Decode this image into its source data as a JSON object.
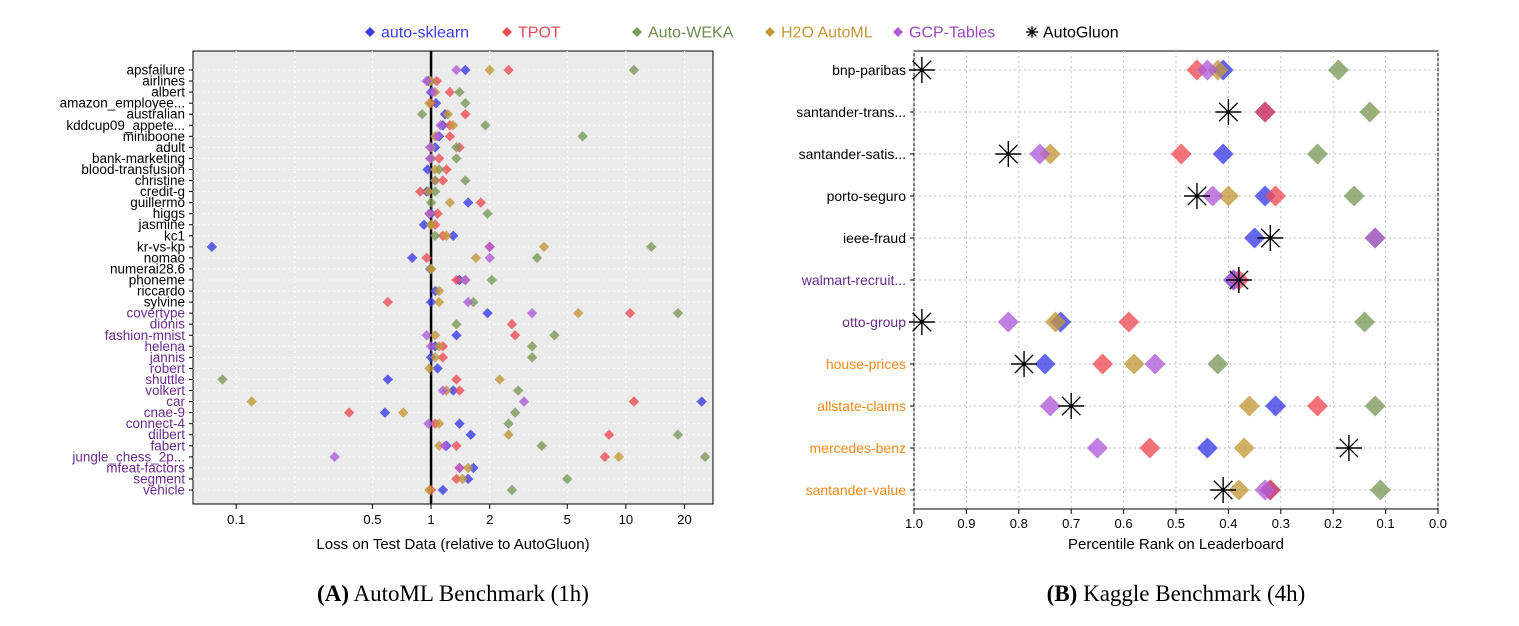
{
  "legend": [
    {
      "name": "auto-sklearn",
      "color": "#3b3be8",
      "marker": "diamond",
      "label_color": "#3b3be8"
    },
    {
      "name": "TPOT",
      "color": "#ee4d55",
      "marker": "diamond",
      "label_color": "#ee4d55"
    },
    {
      "name": "Auto-WEKA",
      "color": "#7a9a58",
      "marker": "diamond",
      "label_color": "#6e8a4e"
    },
    {
      "name": "H2O AutoML",
      "color": "#c4973a",
      "marker": "diamond",
      "label_color": "#c4973a"
    },
    {
      "name": "GCP-Tables",
      "color": "#b05cd8",
      "marker": "diamond",
      "label_color": "#9a48c4"
    },
    {
      "name": "AutoGluon",
      "color": "#000000",
      "marker": "asterisk",
      "label_color": "#000000"
    }
  ],
  "colors": {
    "black_label": "#000000",
    "purple_label": "#6a2b8a",
    "orange_label": "#f0881a"
  },
  "chart_data": [
    {
      "type": "scatter",
      "panel": "A",
      "caption_letter": "(A)",
      "caption_text": " AutoML Benchmark (1h)",
      "xlabel": "Loss on Test Data (relative to AutoGluon)",
      "ylabel": "",
      "x_scale": "log",
      "xlim": [
        0.06,
        28
      ],
      "xticks": [
        0.1,
        0.5,
        1,
        2,
        5,
        10,
        20
      ],
      "xtick_labels": [
        "0.1",
        "0.5",
        "1",
        "2",
        "5",
        "10",
        "20"
      ],
      "reference_line": 1,
      "grid": true,
      "legend_position": "top",
      "series_order": [
        "auto-sklearn",
        "TPOT",
        "Auto-WEKA",
        "H2O AutoML",
        "GCP-Tables"
      ],
      "datasets": [
        {
          "name": "apsfailure",
          "color_group": "black",
          "values": [
            1.5,
            2.5,
            11,
            2.0,
            1.35
          ]
        },
        {
          "name": "airlines",
          "color_group": "black",
          "values": [
            0.97,
            1.07,
            1.0,
            0.99,
            0.95
          ]
        },
        {
          "name": "albert",
          "color_group": "black",
          "values": [
            1.0,
            1.25,
            1.4,
            1.05,
            1.02
          ]
        },
        {
          "name": "amazon_employee...",
          "color_group": "black",
          "values": [
            1.06,
            1.0,
            1.5,
            0.98,
            null
          ]
        },
        {
          "name": "australian",
          "color_group": "black",
          "values": [
            1.18,
            1.5,
            0.9,
            1.22,
            null
          ]
        },
        {
          "name": "kddcup09_appete...",
          "color_group": "black",
          "values": [
            1.15,
            1.25,
            1.9,
            1.3,
            1.12
          ]
        },
        {
          "name": "miniboone",
          "color_group": "black",
          "values": [
            1.1,
            1.25,
            6.0,
            1.05,
            1.08
          ]
        },
        {
          "name": "adult",
          "color_group": "black",
          "values": [
            1.05,
            1.4,
            1.35,
            1.0,
            0.99
          ]
        },
        {
          "name": "bank-marketing",
          "color_group": "black",
          "values": [
            1.0,
            1.1,
            1.35,
            1.0,
            0.99
          ]
        },
        {
          "name": "blood-transfusion",
          "color_group": "black",
          "values": [
            0.96,
            1.2,
            1.1,
            1.05,
            null
          ]
        },
        {
          "name": "christine",
          "color_group": "black",
          "values": [
            1.05,
            1.15,
            1.5,
            1.05,
            null
          ]
        },
        {
          "name": "credit-g",
          "color_group": "black",
          "values": [
            0.95,
            0.88,
            1.05,
            0.97,
            null
          ]
        },
        {
          "name": "guillermo",
          "color_group": "black",
          "values": [
            1.55,
            1.8,
            1.0,
            1.25,
            null
          ]
        },
        {
          "name": "higgs",
          "color_group": "black",
          "values": [
            1.0,
            1.08,
            1.95,
            0.98,
            0.98
          ]
        },
        {
          "name": "jasmine",
          "color_group": "black",
          "values": [
            0.92,
            1.05,
            1.0,
            1.0,
            null
          ]
        },
        {
          "name": "kc1",
          "color_group": "black",
          "values": [
            1.3,
            1.15,
            1.05,
            1.2,
            null
          ]
        },
        {
          "name": "kr-vs-kp",
          "color_group": "black",
          "values": [
            0.075,
            2.0,
            13.5,
            3.8,
            2.0
          ]
        },
        {
          "name": "nomao",
          "color_group": "black",
          "values": [
            0.8,
            0.95,
            3.5,
            1.7,
            2.0
          ]
        },
        {
          "name": "numerai28.6",
          "color_group": "black",
          "values": [
            0.99,
            1.0,
            1.0,
            1.0,
            null
          ]
        },
        {
          "name": "phoneme",
          "color_group": "black",
          "values": [
            1.4,
            1.35,
            2.05,
            1.5,
            1.5
          ]
        },
        {
          "name": "riccardo",
          "color_group": "black",
          "values": [
            1.05,
            null,
            null,
            1.1,
            null
          ]
        },
        {
          "name": "sylvine",
          "color_group": "black",
          "values": [
            1.0,
            0.6,
            1.65,
            1.1,
            1.55
          ]
        },
        {
          "name": "covertype",
          "color_group": "purple",
          "values": [
            1.95,
            10.5,
            18.5,
            5.7,
            3.3
          ]
        },
        {
          "name": "dionis",
          "color_group": "purple",
          "values": null,
          "values2": [
            null,
            2.6,
            1.35,
            null,
            null
          ]
        },
        {
          "name": "fashion-mnist",
          "color_group": "purple",
          "values": [
            1.35,
            2.7,
            4.3,
            1.05,
            0.95
          ]
        },
        {
          "name": "helena",
          "color_group": "purple",
          "values": [
            1.05,
            1.15,
            3.3,
            1.1,
            1.0
          ]
        },
        {
          "name": "jannis",
          "color_group": "purple",
          "values": [
            1.0,
            1.15,
            3.3,
            1.05,
            null
          ]
        },
        {
          "name": "robert",
          "color_group": "purple",
          "values": [
            1.08,
            null,
            null,
            0.98,
            null
          ]
        },
        {
          "name": "shuttle",
          "color_group": "purple",
          "values": [
            0.6,
            1.35,
            0.085,
            2.25,
            null
          ]
        },
        {
          "name": "volkert",
          "color_group": "purple",
          "values": [
            1.3,
            1.4,
            2.8,
            1.2,
            1.15
          ]
        },
        {
          "name": "car",
          "color_group": "purple",
          "values": [
            24.5,
            11.0,
            null,
            0.12,
            3.0
          ]
        },
        {
          "name": "cnae-9",
          "color_group": "purple",
          "values": [
            0.58,
            0.38,
            2.7,
            0.72,
            null
          ]
        },
        {
          "name": "connect-4",
          "color_group": "purple",
          "values": [
            1.4,
            1.05,
            2.5,
            1.1,
            0.97
          ]
        },
        {
          "name": "dilbert",
          "color_group": "purple",
          "values": [
            1.6,
            8.2,
            18.5,
            2.5,
            null
          ]
        },
        {
          "name": "fabert",
          "color_group": "purple",
          "values": [
            1.2,
            1.35,
            3.7,
            1.1,
            1.18
          ]
        },
        {
          "name": "jungle_chess_2p...",
          "color_group": "purple",
          "values": [
            null,
            7.8,
            25.5,
            9.2,
            0.32
          ]
        },
        {
          "name": "mfeat-factors",
          "color_group": "purple",
          "values": [
            1.65,
            1.4,
            null,
            1.55,
            1.4
          ]
        },
        {
          "name": "segment",
          "color_group": "purple",
          "values": [
            1.55,
            1.35,
            5.0,
            1.45,
            null
          ]
        },
        {
          "name": "vehicle",
          "color_group": "purple",
          "values": [
            1.15,
            1.0,
            2.6,
            0.98,
            null
          ]
        }
      ]
    },
    {
      "type": "scatter",
      "panel": "B",
      "caption_letter": "(B)",
      "caption_text": " Kaggle Benchmark (4h)",
      "xlabel": "Percentile Rank on Leaderboard",
      "ylabel": "",
      "x_scale": "linear-reversed",
      "xlim": [
        1.0,
        0.0
      ],
      "xticks": [
        1.0,
        0.9,
        0.8,
        0.7,
        0.6,
        0.5,
        0.4,
        0.3,
        0.2,
        0.1,
        0.0
      ],
      "xtick_labels": [
        "1.0",
        "0.9",
        "0.8",
        "0.7",
        "0.6",
        "0.5",
        "0.4",
        "0.3",
        "0.2",
        "0.1",
        "0.0"
      ],
      "grid": true,
      "series_order": [
        "auto-sklearn",
        "TPOT",
        "Auto-WEKA",
        "H2O AutoML",
        "GCP-Tables",
        "AutoGluon"
      ],
      "datasets": [
        {
          "name": "bnp-paribas",
          "color_group": "black",
          "values": [
            0.41,
            0.46,
            0.19,
            0.42,
            0.44,
            0.985
          ]
        },
        {
          "name": "santander-trans...",
          "color_group": "black",
          "values": [
            0.33,
            0.33,
            0.13,
            null,
            null,
            0.4
          ]
        },
        {
          "name": "santander-satis...",
          "color_group": "black",
          "values": [
            0.41,
            0.49,
            0.23,
            0.74,
            0.76,
            0.82
          ]
        },
        {
          "name": "porto-seguro",
          "color_group": "black",
          "values": [
            0.33,
            0.31,
            0.16,
            0.4,
            0.43,
            0.46
          ]
        },
        {
          "name": "ieee-fraud",
          "color_group": "black",
          "values": [
            0.35,
            null,
            0.12,
            null,
            0.12,
            0.32
          ]
        },
        {
          "name": "walmart-recruit...",
          "color_group": "purple",
          "values": [
            0.39,
            0.38,
            null,
            null,
            0.39,
            0.38
          ]
        },
        {
          "name": "otto-group",
          "color_group": "purple",
          "values": [
            0.72,
            0.59,
            0.14,
            0.73,
            0.82,
            0.985
          ]
        },
        {
          "name": "house-prices",
          "color_group": "orange",
          "values": [
            0.75,
            0.64,
            0.42,
            0.58,
            0.54,
            0.79
          ]
        },
        {
          "name": "allstate-claims",
          "color_group": "orange",
          "values": [
            0.31,
            0.23,
            0.12,
            0.36,
            0.74,
            0.7
          ]
        },
        {
          "name": "mercedes-benz",
          "color_group": "orange",
          "values": [
            0.44,
            0.55,
            null,
            0.37,
            0.65,
            0.17
          ]
        },
        {
          "name": "santander-value",
          "color_group": "orange",
          "values": [
            0.32,
            0.32,
            0.11,
            0.38,
            0.33,
            0.41
          ]
        }
      ]
    }
  ]
}
